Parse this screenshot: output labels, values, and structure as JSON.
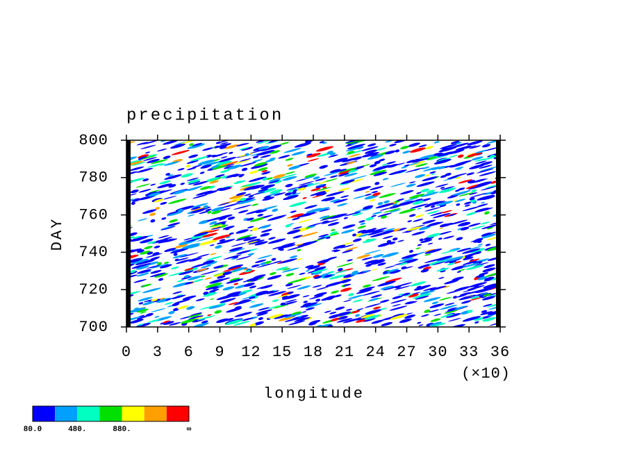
{
  "chart_data": {
    "type": "contour",
    "title": "precipitation",
    "x_label": "longitude",
    "y_label": "DAY",
    "x_scale_note": "(×10)",
    "xlim": [
      0,
      36
    ],
    "xticks": [
      0,
      3,
      6,
      9,
      12,
      15,
      18,
      21,
      24,
      27,
      30,
      33,
      36
    ],
    "ylim": [
      700,
      800
    ],
    "yticks": [
      700,
      720,
      740,
      760,
      780,
      800
    ],
    "colorbar": {
      "colors": [
        "#0000ff",
        "#00a0ff",
        "#00ffc0",
        "#00e000",
        "#ffff00",
        "#ffa000",
        "#ff0000"
      ],
      "labels": [
        "80.0",
        "480.",
        "880.",
        "∞"
      ]
    }
  }
}
